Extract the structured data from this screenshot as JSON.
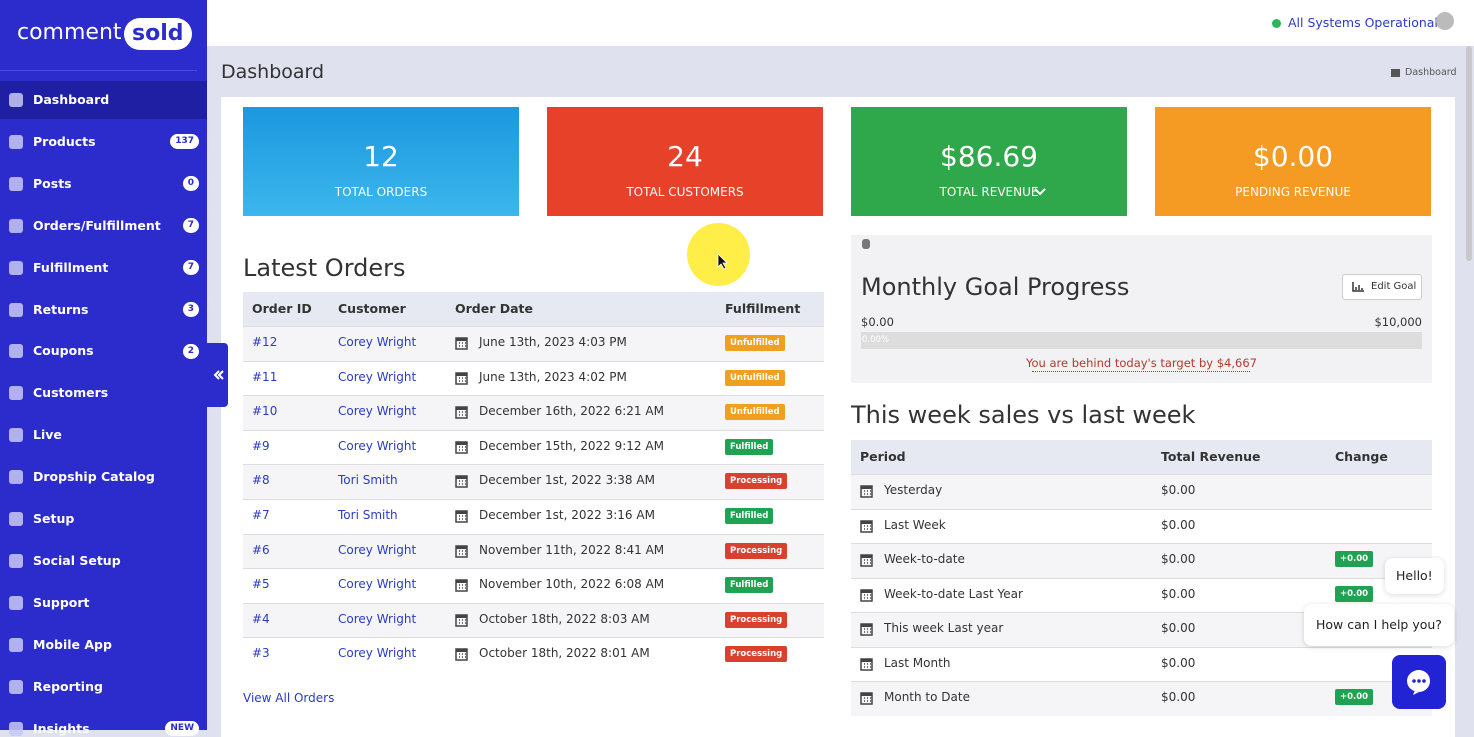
{
  "brand": {
    "left": "comment",
    "right": "sold"
  },
  "sidebar": [
    {
      "label": "Dashboard"
    },
    {
      "label": "Products",
      "badge": "137"
    },
    {
      "label": "Posts",
      "badge": "0"
    },
    {
      "label": "Orders/Fulfillment",
      "badge": "7"
    },
    {
      "label": "Fulfillment",
      "badge": "7"
    },
    {
      "label": "Returns",
      "badge": "3"
    },
    {
      "label": "Coupons",
      "badge": "2"
    },
    {
      "label": "Customers"
    },
    {
      "label": "Live"
    },
    {
      "label": "Dropship Catalog"
    },
    {
      "label": "Setup"
    },
    {
      "label": "Social Setup"
    },
    {
      "label": "Support"
    },
    {
      "label": "Mobile App"
    },
    {
      "label": "Reporting"
    },
    {
      "label": "Insights",
      "badge": "NEW"
    }
  ],
  "status": "All Systems Operational",
  "page_title": "Dashboard",
  "breadcrumb": "Dashboard",
  "stats": [
    {
      "value": "12",
      "label": "TOTAL ORDERS"
    },
    {
      "value": "24",
      "label": "TOTAL CUSTOMERS"
    },
    {
      "value": "$86.69",
      "label": "TOTAL REVENUE"
    },
    {
      "value": "$0.00",
      "label": "PENDING REVENUE"
    }
  ],
  "latest_orders": {
    "title": "Latest Orders",
    "columns": [
      "Order ID",
      "Customer",
      "Order Date",
      "Fulfillment"
    ],
    "rows": [
      [
        "#12",
        "Corey Wright",
        "June 13th, 2023 4:03 PM",
        "Unfulfilled"
      ],
      [
        "#11",
        "Corey Wright",
        "June 13th, 2023 4:02 PM",
        "Unfulfilled"
      ],
      [
        "#10",
        "Corey Wright",
        "December 16th, 2022 6:21 AM",
        "Unfulfilled"
      ],
      [
        "#9",
        "Corey Wright",
        "December 15th, 2022 9:12 AM",
        "Fulfilled"
      ],
      [
        "#8",
        "Tori Smith",
        "December 1st, 2022 3:38 AM",
        "Processing"
      ],
      [
        "#7",
        "Tori Smith",
        "December 1st, 2022 3:16 AM",
        "Fulfilled"
      ],
      [
        "#6",
        "Corey Wright",
        "November 11th, 2022 8:41 AM",
        "Processing"
      ],
      [
        "#5",
        "Corey Wright",
        "November 10th, 2022 6:08 AM",
        "Fulfilled"
      ],
      [
        "#4",
        "Corey Wright",
        "October 18th, 2022 8:03 AM",
        "Processing"
      ],
      [
        "#3",
        "Corey Wright",
        "October 18th, 2022 8:01 AM",
        "Processing"
      ]
    ],
    "link": "View All Orders"
  },
  "goal": {
    "title": "Monthly Goal Progress",
    "button": "Edit Goal",
    "min": "$0.00",
    "max": "$10,000",
    "progress": "0.00%",
    "note": "You are behind today's target by $4,667"
  },
  "weekly": {
    "title": "This week sales vs last week",
    "columns": [
      "Period",
      "Total Revenue",
      "Change"
    ],
    "rows": [
      {
        "period": "Yesterday",
        "revenue": "$0.00"
      },
      {
        "period": "Last Week",
        "revenue": "$0.00"
      },
      {
        "period": "Week-to-date",
        "revenue": "$0.00",
        "change": "+0.00"
      },
      {
        "period": "Week-to-date Last Year",
        "revenue": "$0.00",
        "change": "+0.00"
      },
      {
        "period": "This week Last year",
        "revenue": "$0.00"
      },
      {
        "period": "Last Month",
        "revenue": "$0.00"
      },
      {
        "period": "Month to Date",
        "revenue": "$0.00",
        "change": "+0.00"
      }
    ]
  },
  "chat": {
    "greeting": "Hello!",
    "prompt": "How can I help you?"
  }
}
